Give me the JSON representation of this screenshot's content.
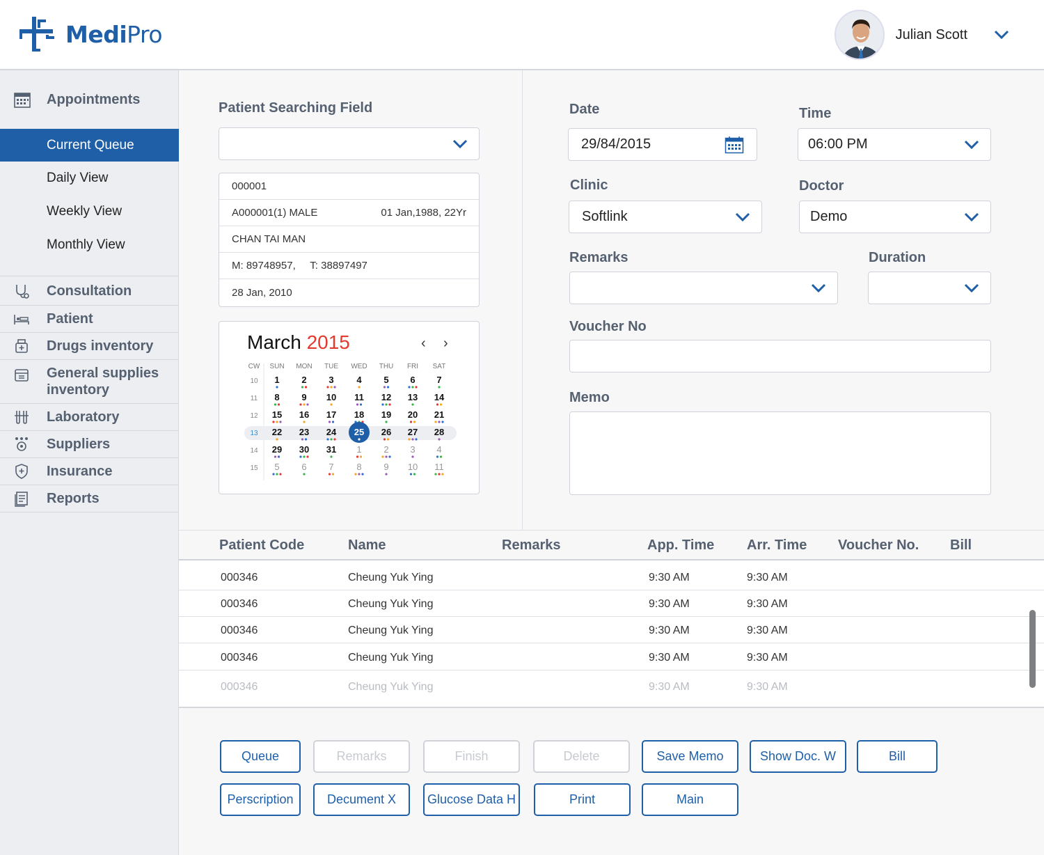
{
  "app": {
    "logo_bold": "Medi",
    "logo_light": "Pro",
    "user_name": "Julian Scott"
  },
  "sidebar": {
    "section_title": "Appointments",
    "sub_items": [
      "Current Queue",
      "Daily View",
      "Weekly View",
      "Monthly View"
    ],
    "active_index": 0,
    "items": [
      {
        "label": "Consultation",
        "icon": "stethoscope-icon"
      },
      {
        "label": "Patient",
        "icon": "patient-bed-icon"
      },
      {
        "label": "Drugs inventory",
        "icon": "drugs-icon"
      },
      {
        "label": "General supplies inventory",
        "icon": "supplies-icon"
      },
      {
        "label": "Laboratory",
        "icon": "lab-icon"
      },
      {
        "label": "Suppliers",
        "icon": "suppliers-icon"
      },
      {
        "label": "Insurance",
        "icon": "shield-icon"
      },
      {
        "label": "Reports",
        "icon": "report-icon"
      }
    ]
  },
  "patient_search": {
    "label": "Patient Searching Field",
    "value": "",
    "info": {
      "code": "000001",
      "id_gender": "A000001(1) MALE",
      "dob_age": "01 Jan,1988, 22Yr",
      "name": "CHAN TAI MAN",
      "phones": "M: 89748957,     T: 38897497",
      "date": "28 Jan, 2010"
    }
  },
  "calendar": {
    "month": "March",
    "year": "2015",
    "prev": "‹",
    "next": "›",
    "headers": [
      "CW",
      "SUN",
      "MON",
      "TUE",
      "WED",
      "THU",
      "FRI",
      "SAT"
    ],
    "weeks": [
      {
        "cw": "10",
        "days": [
          "1",
          "2",
          "3",
          "4",
          "5",
          "6",
          "7"
        ]
      },
      {
        "cw": "11",
        "days": [
          "8",
          "9",
          "10",
          "11",
          "12",
          "13",
          "14"
        ]
      },
      {
        "cw": "12",
        "days": [
          "15",
          "16",
          "17",
          "18",
          "19",
          "20",
          "21"
        ]
      },
      {
        "cw": "13",
        "days": [
          "22",
          "23",
          "24",
          "25",
          "26",
          "27",
          "28"
        ]
      },
      {
        "cw": "14",
        "days": [
          "29",
          "30",
          "31",
          "1",
          "2",
          "3",
          "4"
        ]
      },
      {
        "cw": "15",
        "days": [
          "5",
          "6",
          "7",
          "8",
          "9",
          "10",
          "11"
        ]
      }
    ],
    "selected_day": "25",
    "current_week": "13"
  },
  "form": {
    "date_label": "Date",
    "date_value": "29/84/2015",
    "time_label": "Time",
    "time_value": "06:00 PM",
    "clinic_label": "Clinic",
    "clinic_value": "Softlink",
    "doctor_label": "Doctor",
    "doctor_value": "Demo",
    "remarks_label": "Remarks",
    "remarks_value": "",
    "duration_label": "Duration",
    "duration_value": "",
    "voucher_label": "Voucher No",
    "voucher_value": "",
    "memo_label": "Memo",
    "memo_value": ""
  },
  "table": {
    "columns": [
      "Patient Code",
      "Name",
      "Remarks",
      "App. Time",
      "Arr. Time",
      "Voucher No.",
      "Bill"
    ],
    "rows": [
      {
        "code": "000346",
        "name": "Cheung Yuk Ying",
        "remarks": "",
        "app": "9:30 AM",
        "arr": "9:30 AM",
        "voucher": "",
        "bill": ""
      },
      {
        "code": "000346",
        "name": "Cheung Yuk Ying",
        "remarks": "",
        "app": "9:30 AM",
        "arr": "9:30 AM",
        "voucher": "",
        "bill": ""
      },
      {
        "code": "000346",
        "name": "Cheung Yuk Ying",
        "remarks": "",
        "app": "9:30 AM",
        "arr": "9:30 AM",
        "voucher": "",
        "bill": ""
      },
      {
        "code": "000346",
        "name": "Cheung Yuk Ying",
        "remarks": "",
        "app": "9:30 AM",
        "arr": "9:30 AM",
        "voucher": "",
        "bill": ""
      },
      {
        "code": "000346",
        "name": "Cheung Yuk Ying",
        "remarks": "",
        "app": "9:30 AM",
        "arr": "9:30 AM",
        "voucher": "",
        "bill": ""
      }
    ]
  },
  "actions": {
    "row1": [
      {
        "label": "Queue",
        "enabled": true
      },
      {
        "label": "Remarks",
        "enabled": false
      },
      {
        "label": "Finish",
        "enabled": false
      },
      {
        "label": "Delete",
        "enabled": false
      },
      {
        "label": "Save Memo",
        "enabled": true
      },
      {
        "label": "Show Doc. W",
        "enabled": true
      },
      {
        "label": "Bill",
        "enabled": true
      }
    ],
    "row2": [
      {
        "label": "Perscription",
        "enabled": true
      },
      {
        "label": "Decument X",
        "enabled": true
      },
      {
        "label": "Glucose Data H",
        "enabled": true
      },
      {
        "label": "Print",
        "enabled": true
      },
      {
        "label": "Main",
        "enabled": true
      }
    ]
  },
  "colors": {
    "brand": "#1f5fa8",
    "year_red": "#e33a2e",
    "disabled": "#c7cbd1"
  }
}
